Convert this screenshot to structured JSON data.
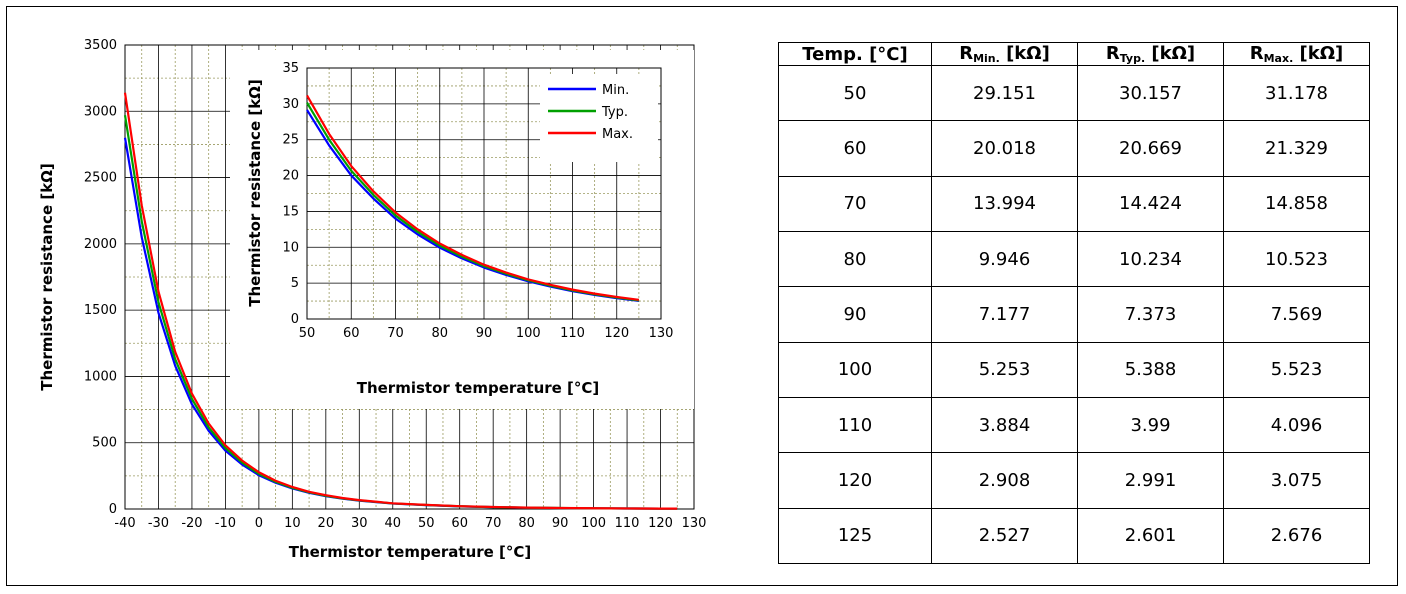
{
  "chart_data": [
    {
      "type": "line",
      "xlabel": "Thermistor temperature [°C]",
      "ylabel": "Thermistor resistance [kΩ]",
      "xlim": [
        -40,
        130
      ],
      "ylim": [
        0,
        3500
      ],
      "xticks": [
        -40,
        -30,
        -20,
        -10,
        0,
        10,
        20,
        30,
        40,
        50,
        60,
        70,
        80,
        90,
        100,
        110,
        120,
        130
      ],
      "yticks": [
        0,
        500,
        1000,
        1500,
        2000,
        2500,
        3000,
        3500
      ],
      "grid": true,
      "x": [
        -40,
        -35,
        -30,
        -25,
        -20,
        -15,
        -10,
        -5,
        0,
        5,
        10,
        15,
        20,
        25,
        30,
        40,
        50,
        60,
        70,
        80,
        90,
        100,
        110,
        120,
        125
      ],
      "series": [
        {
          "name": "Min.",
          "color": "#0000ff",
          "values": [
            2800,
            2050,
            1480,
            1080,
            790,
            590,
            440,
            335,
            255,
            198,
            155,
            122,
            97,
            78,
            63,
            41,
            29.151,
            20.018,
            13.994,
            9.946,
            7.177,
            5.253,
            3.884,
            2.908,
            2.527
          ]
        },
        {
          "name": "Typ.",
          "color": "#00a000",
          "values": [
            2970,
            2170,
            1560,
            1130,
            830,
            615,
            460,
            350,
            265,
            205,
            160,
            126,
            100,
            80,
            65,
            42,
            30.157,
            20.669,
            14.424,
            10.234,
            7.373,
            5.388,
            3.99,
            2.991,
            2.601
          ]
        },
        {
          "name": "Max.",
          "color": "#ff0000",
          "values": [
            3140,
            2290,
            1640,
            1185,
            870,
            645,
            480,
            365,
            277,
            213,
            166,
            130,
            104,
            83,
            67,
            43,
            31.178,
            21.329,
            14.858,
            10.523,
            7.569,
            5.523,
            4.096,
            3.075,
            2.676
          ]
        }
      ]
    },
    {
      "type": "line",
      "xlabel": "Thermistor temperature [°C]",
      "ylabel": "Thermistor resistance [kΩ]",
      "xlim": [
        50,
        130
      ],
      "ylim": [
        0,
        35
      ],
      "xticks": [
        50,
        60,
        70,
        80,
        90,
        100,
        110,
        120,
        130
      ],
      "yticks": [
        0,
        5,
        10,
        15,
        20,
        25,
        30,
        35
      ],
      "grid": true,
      "legend": "top-right",
      "x": [
        50,
        55,
        60,
        65,
        70,
        75,
        80,
        85,
        90,
        95,
        100,
        105,
        110,
        115,
        120,
        125
      ],
      "series": [
        {
          "name": "Min.",
          "color": "#0000ff",
          "values": [
            29.151,
            24.2,
            20.018,
            16.8,
            13.994,
            11.8,
            9.946,
            8.45,
            7.177,
            6.15,
            5.253,
            4.52,
            3.884,
            3.36,
            2.908,
            2.527
          ]
        },
        {
          "name": "Typ.",
          "color": "#00a000",
          "values": [
            30.157,
            25.0,
            20.669,
            17.3,
            14.424,
            12.15,
            10.234,
            8.7,
            7.373,
            6.31,
            5.388,
            4.64,
            3.99,
            3.45,
            2.991,
            2.601
          ]
        },
        {
          "name": "Max.",
          "color": "#ff0000",
          "values": [
            31.178,
            25.8,
            21.329,
            17.8,
            14.858,
            12.5,
            10.523,
            8.94,
            7.569,
            6.48,
            5.523,
            4.76,
            4.096,
            3.54,
            3.075,
            2.676
          ]
        }
      ]
    },
    {
      "type": "table",
      "headers": [
        {
          "main": "Temp. [°C]",
          "sub": ""
        },
        {
          "main": "R",
          "sub": "Min.",
          "unit": " [kΩ]"
        },
        {
          "main": "R",
          "sub": "Typ.",
          "unit": " [kΩ]"
        },
        {
          "main": "R",
          "sub": "Max.",
          "unit": " [kΩ]"
        }
      ],
      "rows": [
        [
          "50",
          "29.151",
          "30.157",
          "31.178"
        ],
        [
          "60",
          "20.018",
          "20.669",
          "21.329"
        ],
        [
          "70",
          "13.994",
          "14.424",
          "14.858"
        ],
        [
          "80",
          "9.946",
          "10.234",
          "10.523"
        ],
        [
          "90",
          "7.177",
          "7.373",
          "7.569"
        ],
        [
          "100",
          "5.253",
          "5.388",
          "5.523"
        ],
        [
          "110",
          "3.884",
          "3.99",
          "4.096"
        ],
        [
          "120",
          "2.908",
          "2.991",
          "3.075"
        ],
        [
          "125",
          "2.527",
          "2.601",
          "2.676"
        ]
      ]
    }
  ]
}
